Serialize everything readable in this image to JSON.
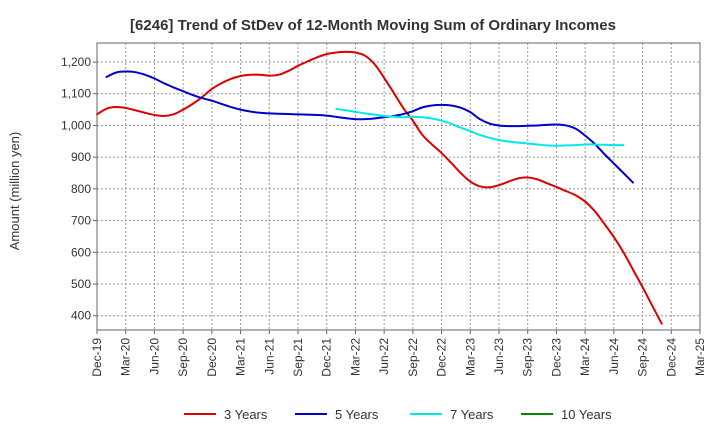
{
  "chart_data": {
    "type": "line",
    "title": "[6246]  Trend of StDev of 12-Month Moving Sum of Ordinary Incomes",
    "xlabel": "",
    "ylabel": "Amount (million yen)",
    "ylim": [
      355,
      1260
    ],
    "yticks": [
      400,
      500,
      600,
      700,
      800,
      900,
      1000,
      1100,
      1200
    ],
    "ytick_labels": [
      "400",
      "500",
      "600",
      "700",
      "800",
      "900",
      "1,000",
      "1,100",
      "1,200"
    ],
    "x_tick_labels": [
      "Dec-19",
      "Mar-20",
      "Jun-20",
      "Sep-20",
      "Dec-20",
      "Mar-21",
      "Jun-21",
      "Sep-21",
      "Dec-21",
      "Mar-22",
      "Jun-22",
      "Sep-22",
      "Dec-22",
      "Mar-23",
      "Jun-23",
      "Sep-23",
      "Dec-23",
      "Mar-24",
      "Jun-24",
      "Sep-24",
      "Dec-24",
      "Mar-25"
    ],
    "grid": true,
    "legend_position": "bottom",
    "series": [
      {
        "name": "3 Years",
        "color": "#dd0000",
        "start_index": 0,
        "values": [
          1035,
          1053,
          1058,
          1055,
          1048,
          1040,
          1033,
          1030,
          1035,
          1050,
          1068,
          1090,
          1115,
          1133,
          1147,
          1156,
          1160,
          1160,
          1157,
          1160,
          1172,
          1188,
          1202,
          1215,
          1225,
          1230,
          1232,
          1230,
          1220,
          1193,
          1150,
          1103,
          1055,
          1015,
          970,
          940,
          913,
          882,
          850,
          823,
          808,
          805,
          812,
          823,
          833,
          836,
          830,
          818,
          806,
          793,
          780,
          760,
          730,
          690,
          648,
          600,
          545,
          490,
          432,
          375
        ]
      },
      {
        "name": "5 Years",
        "color": "#0000cc",
        "start_index": 1,
        "values": [
          1153,
          1167,
          1170,
          1168,
          1160,
          1148,
          1133,
          1120,
          1108,
          1096,
          1086,
          1078,
          1068,
          1058,
          1050,
          1044,
          1040,
          1038,
          1037,
          1036,
          1035,
          1034,
          1033,
          1031,
          1027,
          1023,
          1020,
          1020,
          1022,
          1026,
          1030,
          1036,
          1045,
          1057,
          1063,
          1065,
          1063,
          1056,
          1042,
          1020,
          1006,
          1000,
          998,
          998,
          999,
          1000,
          1002,
          1003,
          1000,
          990,
          968,
          942,
          910,
          880,
          850,
          820
        ]
      },
      {
        "name": "7 Years",
        "color": "#00e8e8",
        "start_index": 25,
        "values": [
          1052,
          1048,
          1043,
          1038,
          1034,
          1030,
          1028,
          1026,
          1027,
          1026,
          1022,
          1015,
          1005,
          993,
          982,
          970,
          961,
          954,
          949,
          946,
          943,
          940,
          937,
          936,
          937,
          938,
          940,
          940,
          939,
          938,
          938
        ]
      },
      {
        "name": "10 Years",
        "color": "#008800",
        "start_index": 0,
        "values": []
      }
    ]
  }
}
